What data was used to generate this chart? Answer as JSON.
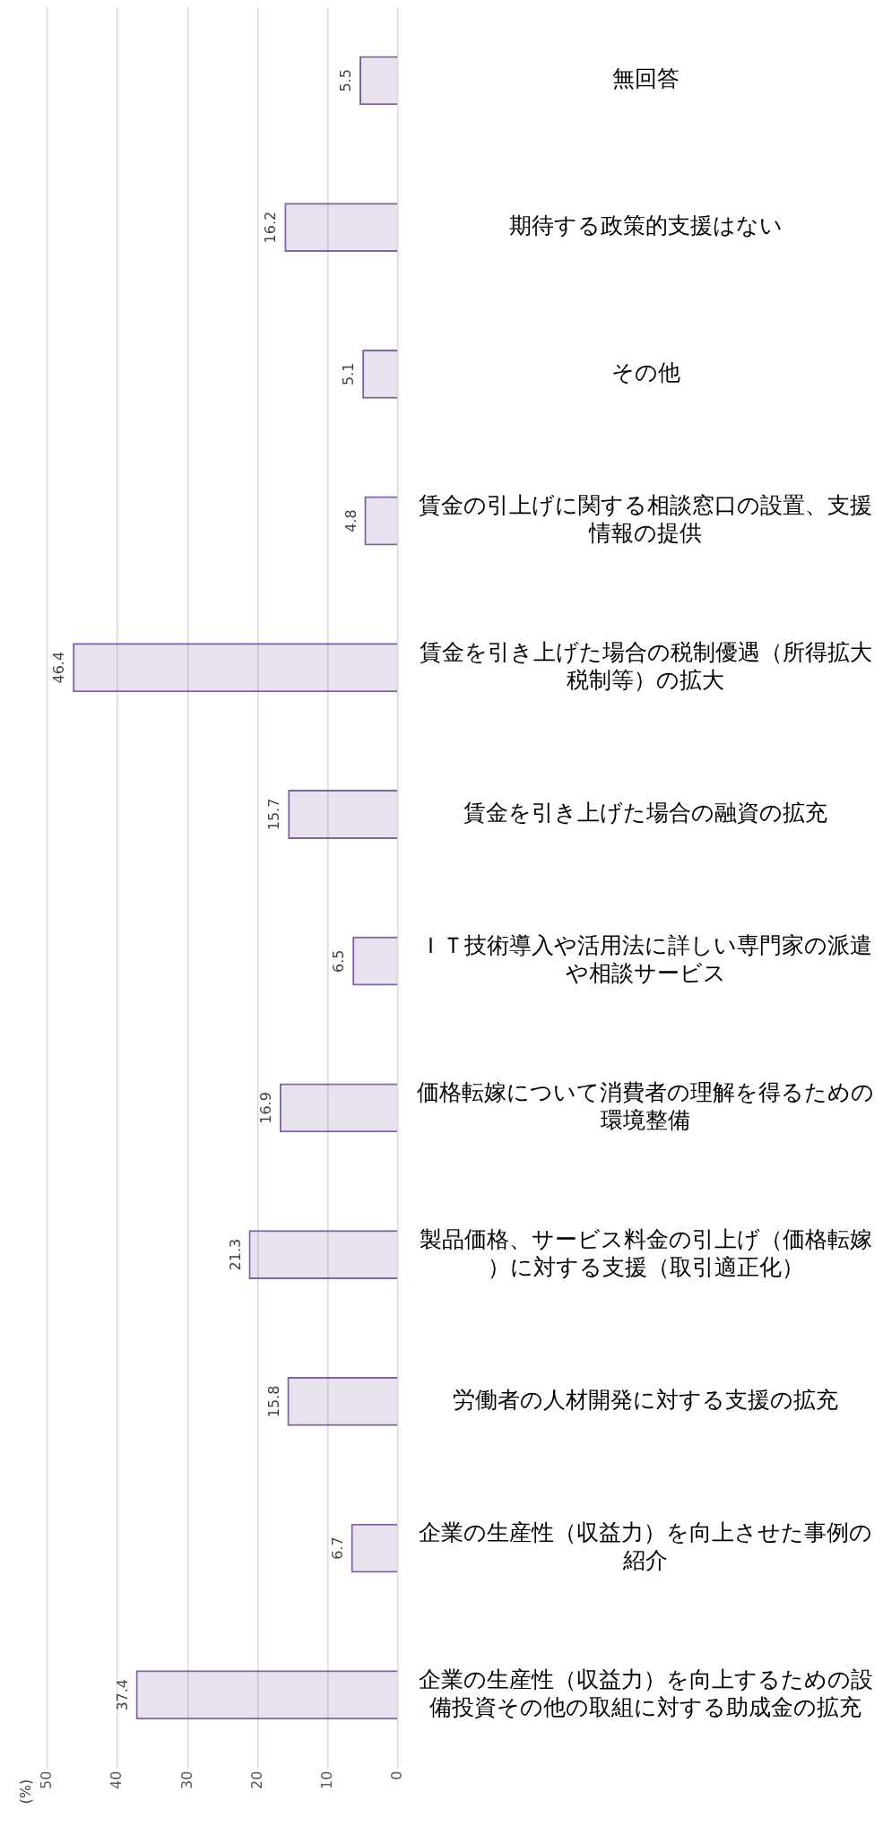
{
  "chart_data": {
    "type": "bar",
    "orientation": "horizontal",
    "annotations": [
      "(%)"
    ],
    "categories": [
      "無回答",
      "期待する政策的支援はない",
      "その他",
      "賃金の引上げに関する相談窓口の設置、支援情報の提供",
      "賃金を引き上げた場合の税制優遇（所得拡大税制等）の拡大",
      "賃金を引き上げた場合の融資の拡充",
      "ＩＴ技術導入や活用法に詳しい専門家の派遣や相談サービス",
      "価格転嫁について消費者の理解を得るための環境整備",
      "製品価格、サービス料金の引上げ（価格転嫁）に対する支援（取引適正化）",
      "労働者の人材開発に対する支援の拡充",
      "企業の生産性（収益力）を向上させた事例の紹介",
      "企業の生産性（収益力）を向上するための設備投資その他の取組に対する助成金の拡充"
    ],
    "values": [
      5.5,
      16.2,
      5.1,
      4.8,
      46.4,
      15.7,
      6.5,
      16.9,
      21.3,
      15.8,
      6.7,
      37.4
    ],
    "color": "#8064a2",
    "xlim": [
      50,
      0
    ],
    "xticks": [
      0,
      10,
      20,
      30,
      40,
      50
    ],
    "grid": "x",
    "data_labels": true
  }
}
